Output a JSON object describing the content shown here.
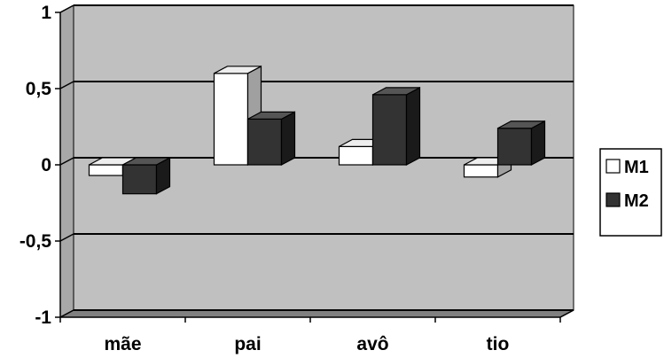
{
  "chart_data": {
    "type": "bar",
    "categories": [
      "mãe",
      "pai",
      "avô",
      "tio"
    ],
    "series": [
      {
        "name": "M1",
        "values": [
          -0.07,
          0.6,
          0.12,
          -0.08
        ],
        "color": "#ffffff"
      },
      {
        "name": "M2",
        "values": [
          -0.19,
          0.3,
          0.46,
          0.24
        ],
        "color": "#333333"
      }
    ],
    "yticks": [
      1,
      0.5,
      0,
      -0.5,
      -1
    ],
    "ytick_labels": [
      "1",
      "0,5",
      "0",
      "-0,5",
      "-1"
    ],
    "ylim": [
      -1,
      1
    ],
    "grid": true,
    "legend_position": "right",
    "colors": {
      "plot_background": "#c0c0c0",
      "wall_side": "#a8a8a8",
      "floor": "#808080",
      "gridline": "#000000"
    }
  }
}
